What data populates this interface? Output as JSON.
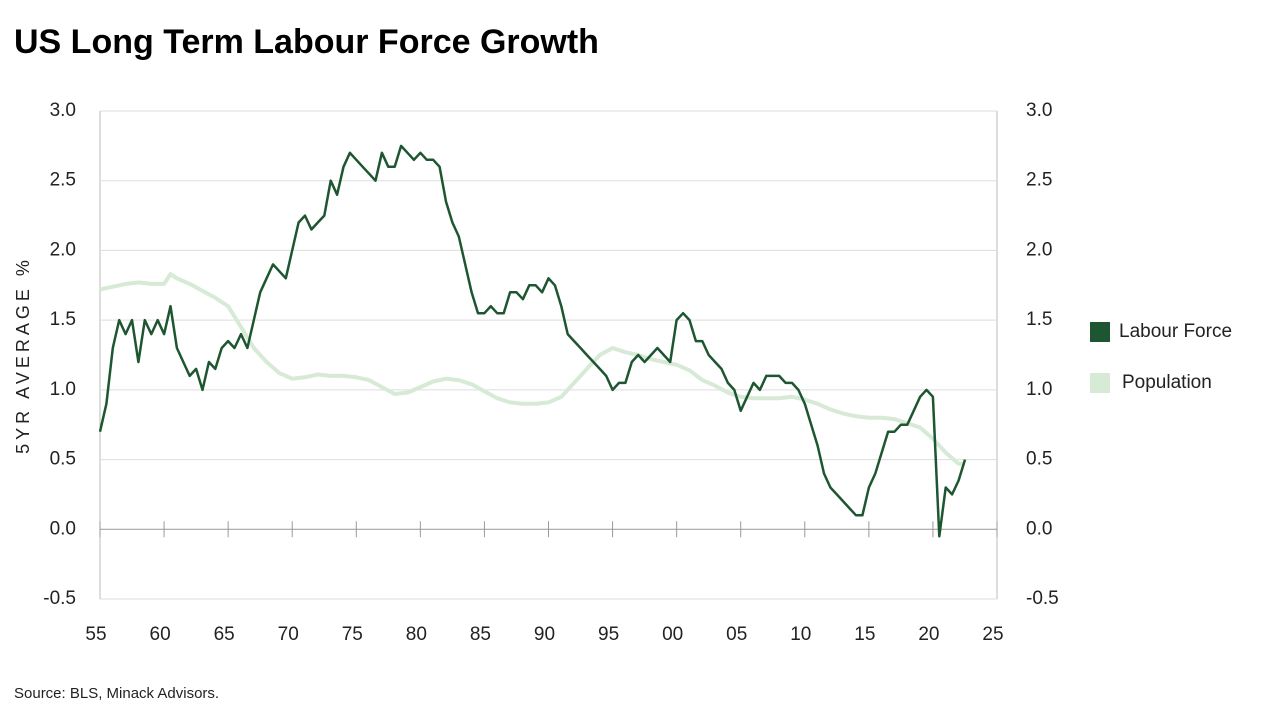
{
  "chart_data": {
    "type": "line",
    "title": "US Long Term Labour Force Growth",
    "y_label": "5YR AVERAGE %",
    "source": "Source: BLS, Minack Advisors.",
    "xlim": [
      1955,
      2025
    ],
    "xticks": [
      {
        "value": 1955,
        "label": "55"
      },
      {
        "value": 1960,
        "label": "60"
      },
      {
        "value": 1965,
        "label": "65"
      },
      {
        "value": 1970,
        "label": "70"
      },
      {
        "value": 1975,
        "label": "75"
      },
      {
        "value": 1980,
        "label": "80"
      },
      {
        "value": 1985,
        "label": "85"
      },
      {
        "value": 1990,
        "label": "90"
      },
      {
        "value": 1995,
        "label": "95"
      },
      {
        "value": 2000,
        "label": "00"
      },
      {
        "value": 2005,
        "label": "05"
      },
      {
        "value": 2010,
        "label": "10"
      },
      {
        "value": 2015,
        "label": "15"
      },
      {
        "value": 2020,
        "label": "20"
      },
      {
        "value": 2025,
        "label": "25"
      }
    ],
    "ylim": [
      -0.5,
      3
    ],
    "yticks": [
      -0.5,
      {
        "value": 0,
        "label": "0.0"
      },
      0.5,
      {
        "value": 1,
        "label": "1.0"
      },
      1.5,
      {
        "value": 2,
        "label": "2.0"
      },
      2.5,
      {
        "value": 3,
        "label": "3.0"
      }
    ],
    "y2lim": [
      -0.5,
      3
    ],
    "y2ticks": [
      -0.5,
      {
        "value": 0,
        "label": "0.0"
      },
      0.5,
      {
        "value": 1,
        "label": "1.0"
      },
      1.5,
      {
        "value": 2,
        "label": "2.0"
      },
      2.5,
      {
        "value": 3,
        "label": "3.0"
      }
    ],
    "grid": true,
    "legend": "right",
    "series": [
      {
        "name": "Labour Force",
        "color": "#1e5631",
        "x": [
          1955,
          1955.5,
          1956,
          1956.5,
          1957,
          1957.5,
          1958,
          1958.5,
          1959,
          1959.5,
          1960,
          1960.5,
          1961,
          1961.5,
          1962,
          1962.5,
          1963,
          1963.5,
          1964,
          1964.5,
          1965,
          1965.5,
          1966,
          1966.5,
          1967,
          1967.5,
          1968,
          1968.5,
          1969,
          1969.5,
          1970,
          1970.5,
          1971,
          1971.5,
          1972,
          1972.5,
          1973,
          1973.5,
          1974,
          1974.5,
          1975,
          1975.5,
          1976,
          1976.5,
          1977,
          1977.5,
          1978,
          1978.5,
          1979,
          1979.5,
          1980,
          1980.5,
          1981,
          1981.5,
          1982,
          1982.5,
          1983,
          1983.5,
          1984,
          1984.5,
          1985,
          1985.5,
          1986,
          1986.5,
          1987,
          1987.5,
          1988,
          1988.5,
          1989,
          1989.5,
          1990,
          1990.5,
          1991,
          1991.5,
          1992,
          1992.5,
          1993,
          1993.5,
          1994,
          1994.5,
          1995,
          1995.5,
          1996,
          1996.5,
          1997,
          1997.5,
          1998,
          1998.5,
          1999,
          1999.5,
          2000,
          2000.5,
          2001,
          2001.5,
          2002,
          2002.5,
          2003,
          2003.5,
          2004,
          2004.5,
          2005,
          2005.5,
          2006,
          2006.5,
          2007,
          2007.5,
          2008,
          2008.5,
          2009,
          2009.5,
          2010,
          2010.5,
          2011,
          2011.5,
          2012,
          2012.5,
          2013,
          2013.5,
          2014,
          2014.5,
          2015,
          2015.5,
          2016,
          2016.5,
          2017,
          2017.5,
          2018,
          2018.5,
          2019,
          2019.5,
          2020,
          2020.5,
          2021,
          2021.5,
          2022,
          2022.5
        ],
        "values": [
          0.7,
          0.9,
          1.3,
          1.5,
          1.4,
          1.5,
          1.2,
          1.5,
          1.4,
          1.5,
          1.4,
          1.6,
          1.3,
          1.2,
          1.1,
          1.15,
          1.0,
          1.2,
          1.15,
          1.3,
          1.35,
          1.3,
          1.4,
          1.3,
          1.5,
          1.7,
          1.8,
          1.9,
          1.85,
          1.8,
          2.0,
          2.2,
          2.25,
          2.15,
          2.2,
          2.25,
          2.5,
          2.4,
          2.6,
          2.7,
          2.65,
          2.6,
          2.55,
          2.5,
          2.7,
          2.6,
          2.6,
          2.75,
          2.7,
          2.65,
          2.7,
          2.65,
          2.65,
          2.6,
          2.35,
          2.2,
          2.1,
          1.9,
          1.7,
          1.55,
          1.55,
          1.6,
          1.55,
          1.55,
          1.7,
          1.7,
          1.65,
          1.75,
          1.75,
          1.7,
          1.8,
          1.75,
          1.6,
          1.4,
          1.35,
          1.3,
          1.25,
          1.2,
          1.15,
          1.1,
          1.0,
          1.05,
          1.05,
          1.2,
          1.25,
          1.2,
          1.25,
          1.3,
          1.25,
          1.2,
          1.5,
          1.55,
          1.5,
          1.35,
          1.35,
          1.25,
          1.2,
          1.15,
          1.05,
          1.0,
          0.85,
          0.95,
          1.05,
          1.0,
          1.1,
          1.1,
          1.1,
          1.05,
          1.05,
          1.0,
          0.9,
          0.75,
          0.6,
          0.4,
          0.3,
          0.25,
          0.2,
          0.15,
          0.1,
          0.1,
          0.3,
          0.4,
          0.55,
          0.7,
          0.7,
          0.75,
          0.75,
          0.85,
          0.95,
          1.0,
          0.95,
          -0.05,
          0.3,
          0.25,
          0.35,
          0.5
        ]
      },
      {
        "name": "Population",
        "color": "#d6ead6",
        "x": [
          1955,
          1956,
          1957,
          1958,
          1959,
          1960,
          1960.5,
          1961,
          1962,
          1963,
          1964,
          1965,
          1966,
          1967,
          1968,
          1969,
          1970,
          1971,
          1972,
          1973,
          1974,
          1975,
          1976,
          1977,
          1978,
          1979,
          1980,
          1981,
          1982,
          1983,
          1984,
          1985,
          1986,
          1987,
          1988,
          1989,
          1990,
          1991,
          1992,
          1993,
          1994,
          1995,
          1996,
          1997,
          1998,
          1999,
          2000,
          2001,
          2002,
          2003,
          2004,
          2005,
          2006,
          2007,
          2008,
          2009,
          2010,
          2011,
          2012,
          2013,
          2014,
          2015,
          2016,
          2017,
          2018,
          2019,
          2020,
          2021,
          2022,
          2022.5
        ],
        "values": [
          1.72,
          1.74,
          1.76,
          1.77,
          1.76,
          1.76,
          1.83,
          1.8,
          1.76,
          1.71,
          1.66,
          1.6,
          1.45,
          1.3,
          1.2,
          1.12,
          1.08,
          1.09,
          1.11,
          1.1,
          1.1,
          1.09,
          1.07,
          1.02,
          0.97,
          0.98,
          1.02,
          1.06,
          1.08,
          1.07,
          1.04,
          0.99,
          0.94,
          0.91,
          0.9,
          0.9,
          0.91,
          0.95,
          1.05,
          1.15,
          1.25,
          1.3,
          1.27,
          1.25,
          1.22,
          1.2,
          1.18,
          1.14,
          1.07,
          1.03,
          0.98,
          0.95,
          0.94,
          0.94,
          0.94,
          0.95,
          0.93,
          0.9,
          0.86,
          0.83,
          0.81,
          0.8,
          0.8,
          0.79,
          0.76,
          0.73,
          0.65,
          0.55,
          0.47,
          0.47
        ]
      }
    ]
  }
}
